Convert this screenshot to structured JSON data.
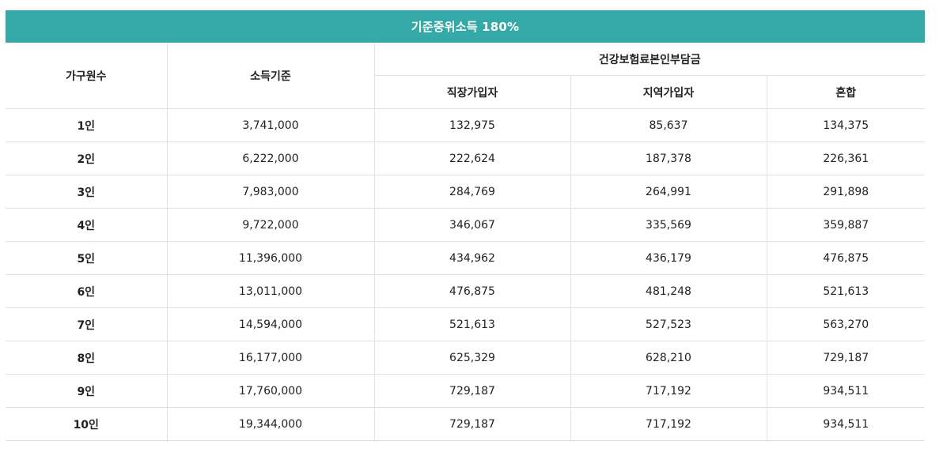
{
  "banner": {
    "title": "기준중위소득 180%"
  },
  "colors": {
    "banner_bg": "#35a8a8",
    "border": "#e1e1e1"
  },
  "header": {
    "household": "가구원수",
    "income": "소득기준",
    "insurance_group": "건강보험료본인부담금",
    "workplace": "직장가입자",
    "regional": "지역가입자",
    "mixed": "혼합"
  },
  "rows": [
    {
      "household": "1인",
      "income": "3,741,000",
      "workplace": "132,975",
      "regional": "85,637",
      "mixed": "134,375"
    },
    {
      "household": "2인",
      "income": "6,222,000",
      "workplace": "222,624",
      "regional": "187,378",
      "mixed": "226,361"
    },
    {
      "household": "3인",
      "income": "7,983,000",
      "workplace": "284,769",
      "regional": "264,991",
      "mixed": "291,898"
    },
    {
      "household": "4인",
      "income": "9,722,000",
      "workplace": "346,067",
      "regional": "335,569",
      "mixed": "359,887"
    },
    {
      "household": "5인",
      "income": "11,396,000",
      "workplace": "434,962",
      "regional": "436,179",
      "mixed": "476,875"
    },
    {
      "household": "6인",
      "income": "13,011,000",
      "workplace": "476,875",
      "regional": "481,248",
      "mixed": "521,613"
    },
    {
      "household": "7인",
      "income": "14,594,000",
      "workplace": "521,613",
      "regional": "527,523",
      "mixed": "563,270"
    },
    {
      "household": "8인",
      "income": "16,177,000",
      "workplace": "625,329",
      "regional": "628,210",
      "mixed": "729,187"
    },
    {
      "household": "9인",
      "income": "17,760,000",
      "workplace": "729,187",
      "regional": "717,192",
      "mixed": "934,511"
    },
    {
      "household": "10인",
      "income": "19,344,000",
      "workplace": "729,187",
      "regional": "717,192",
      "mixed": "934,511"
    }
  ]
}
